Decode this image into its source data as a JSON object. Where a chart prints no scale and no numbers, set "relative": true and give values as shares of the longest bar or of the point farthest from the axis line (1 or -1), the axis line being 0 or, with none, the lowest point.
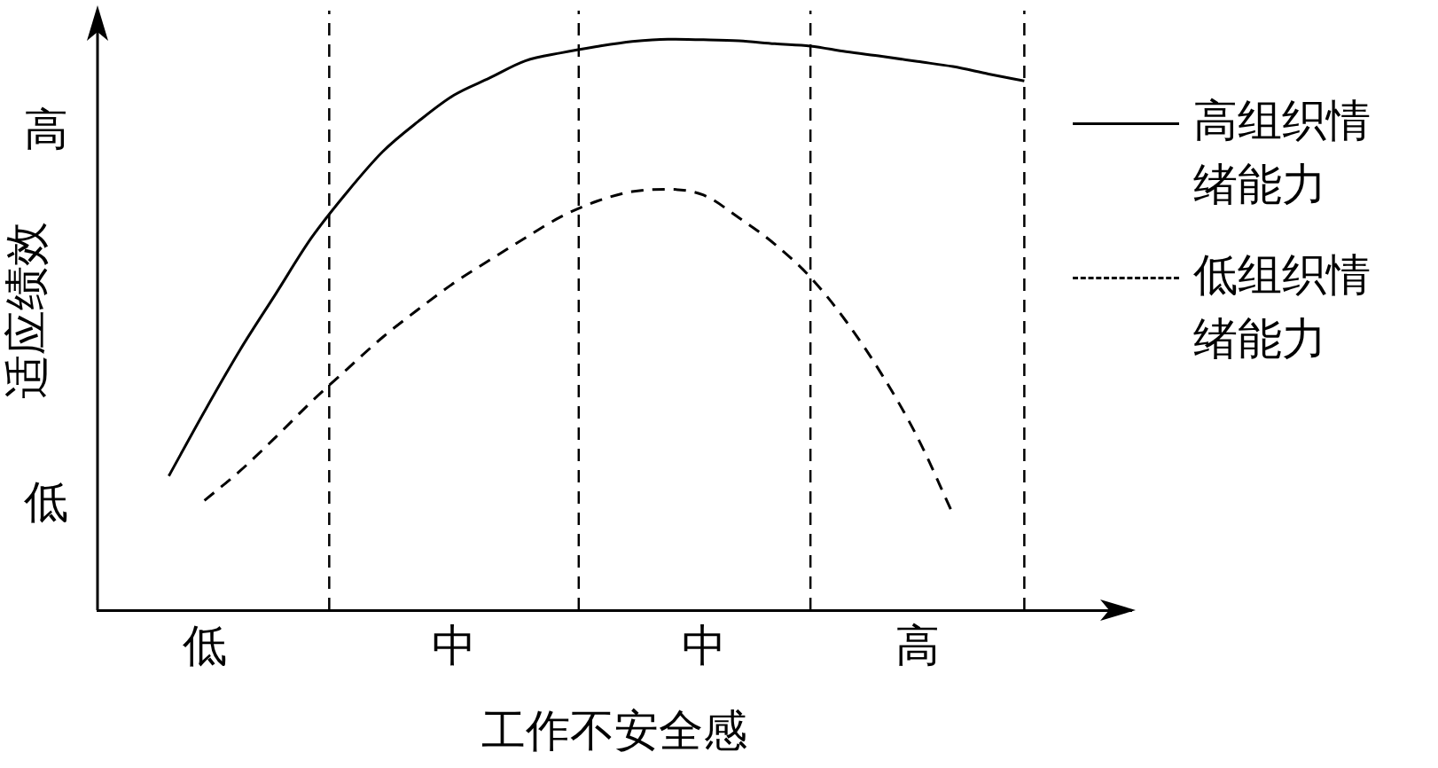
{
  "chart_data": {
    "type": "line",
    "relative": true,
    "xlabel": "工作不安全感",
    "ylabel": "适应绩效",
    "categories": [
      null,
      null,
      null,
      "低",
      null,
      null,
      null,
      null,
      null,
      null,
      "中",
      null,
      null,
      null,
      null,
      null,
      null,
      "中",
      null,
      null,
      null,
      null,
      null,
      "高",
      null,
      null,
      null,
      null,
      null,
      null
    ],
    "annotations": [
      "高",
      "低"
    ],
    "legend": "right",
    "marker": "none",
    "grid": "x",
    "series": [
      {
        "name": "高组织情绪能力",
        "color": "#000000",
        "line_style": "solid",
        "values": [
          null,
          null,
          0.235,
          0.348,
          0.456,
          0.554,
          0.652,
          0.732,
          0.803,
          0.856,
          0.902,
          0.932,
          0.962,
          0.976,
          0.987,
          0.996,
          1,
          0.999,
          0.997,
          0.992,
          0.988,
          0.978,
          0.97,
          0.961,
          0.952,
          0.939,
          0.927,
          null,
          null,
          null
        ]
      },
      {
        "name": "低组织情绪能力",
        "color": "#000000",
        "line_style": "dashed",
        "values": [
          null,
          null,
          null,
          0.192,
          0.244,
          0.303,
          0.365,
          0.422,
          0.478,
          0.527,
          0.573,
          0.613,
          0.652,
          0.689,
          0.716,
          0.733,
          0.737,
          0.727,
          0.687,
          0.641,
          0.583,
          0.506,
          0.413,
          0.303,
          0.168,
          null,
          null,
          null,
          null,
          null
        ]
      }
    ]
  }
}
